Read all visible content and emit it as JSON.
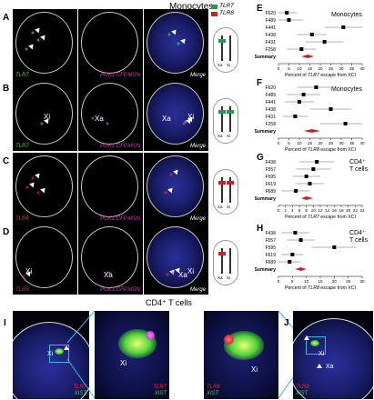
{
  "header": {
    "monocytes": "Monocytes",
    "cd4_title": "CD4⁺ T cells"
  },
  "legend": {
    "tlr7": "TLR7",
    "tlr8": "TLR8"
  },
  "micro_rows": [
    {
      "id": "A",
      "left_label": "TLR7",
      "left_color": "#39d353",
      "mid_label": "PGK1.CFP.MSN",
      "merge_label": "Merge",
      "xi_label": "",
      "xa_label": ""
    },
    {
      "id": "B",
      "left_label": "TLR7",
      "left_color": "#39d353",
      "mid_label": "PGK1.CFP.MSN",
      "merge_label": "Merge",
      "xi_label": "Xi",
      "xa_label": "Xa"
    },
    {
      "id": "C",
      "left_label": "TLR8",
      "left_color": "#e0303a",
      "mid_label": "PGK1.CFP.MSN",
      "merge_label": "Merge",
      "xi_label": "",
      "xa_label": ""
    },
    {
      "id": "D",
      "left_label": "TLR8",
      "left_color": "#e0303a",
      "mid_label": "PGK1.CFP.MSN",
      "merge_label": "Merge",
      "xi_label": "Xi",
      "xa_label": "Xa"
    }
  ],
  "chromosome_labels": {
    "xa": "Xa",
    "xi": "Xi"
  },
  "chart_data": [
    {
      "panel": "E",
      "type": "scatter",
      "title": "Monocytes",
      "xlabel_pre": "Percent of ",
      "xlabel_gene": "TLR7",
      "xlabel_post": " escape from XCI",
      "xlim": [
        0,
        40
      ],
      "ticks": [
        0,
        5,
        10,
        15,
        20,
        25,
        30,
        35,
        40
      ],
      "labels": [
        "F620",
        "F489",
        "F441",
        "F438",
        "F431",
        "F258"
      ],
      "values": [
        4,
        5,
        31,
        16,
        22,
        11
      ],
      "err": [
        5,
        7,
        9,
        7,
        9,
        7
      ],
      "summary_label": "Summary",
      "summary": 14,
      "summary_ci": [
        11,
        17
      ]
    },
    {
      "panel": "F",
      "type": "scatter",
      "title": "Monocytes",
      "xlabel_pre": "Percent of ",
      "xlabel_gene": "TLR8",
      "xlabel_post": " escape from XCI",
      "xlim": [
        0,
        40
      ],
      "ticks": [
        0,
        5,
        10,
        15,
        20,
        25,
        30,
        35,
        40
      ],
      "labels": [
        "F620",
        "F489",
        "F441",
        "F438",
        "F431",
        "F258"
      ],
      "values": [
        18,
        12,
        10,
        25,
        8,
        32
      ],
      "err": [
        9,
        8,
        7,
        10,
        6,
        12
      ],
      "summary_label": "Summary",
      "summary": 16,
      "summary_ci": [
        12,
        20
      ]
    },
    {
      "panel": "G",
      "type": "scatter",
      "title": "CD4⁺ T cells",
      "xlabel_pre": "Percent of ",
      "xlabel_gene": "TLR7",
      "xlabel_post": " escape from XCI",
      "xlim": [
        0,
        24
      ],
      "ticks": [
        0,
        2,
        4,
        6,
        8,
        10,
        12,
        14,
        16,
        18,
        20,
        22,
        24
      ],
      "labels": [
        "F438",
        "F557",
        "F595",
        "F619",
        "F689"
      ],
      "values": [
        11,
        10,
        8,
        9,
        5
      ],
      "err": [
        5,
        5,
        4,
        4,
        4
      ],
      "summary_label": "Summary",
      "summary": 8,
      "summary_ci": [
        6.5,
        10
      ]
    },
    {
      "panel": "H",
      "type": "scatter",
      "title": "CD4⁺ T cells",
      "xlabel_pre": "Percent of ",
      "xlabel_gene": "TLR8",
      "xlabel_post": " escape from XCI",
      "xlim": [
        0,
        30
      ],
      "ticks": [
        0,
        5,
        10,
        15,
        20,
        25,
        30
      ],
      "labels": [
        "F438",
        "F557",
        "F595",
        "F619",
        "F689"
      ],
      "values": [
        6,
        8,
        20,
        5,
        4
      ],
      "err": [
        5,
        5,
        8,
        4,
        4
      ],
      "summary_label": "Summary",
      "summary": 8,
      "summary_ci": [
        6,
        10
      ]
    }
  ],
  "bottom": {
    "I": {
      "label1": "TLR7",
      "label2": "XIST",
      "xi": "Xi"
    },
    "J": {
      "label1": "TLR8",
      "label2": "XIST",
      "xi": "Xi",
      "xa": "Xa"
    }
  }
}
